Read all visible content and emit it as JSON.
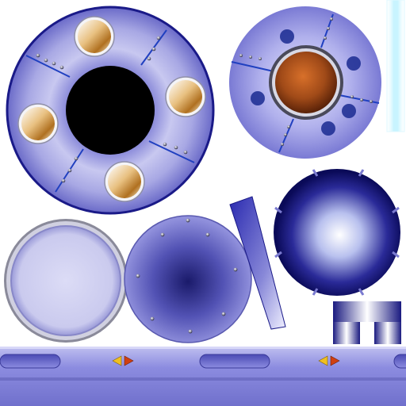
{
  "atlas": {
    "background": "#ffffff",
    "palette": {
      "lavender_light": "#d6d6f3",
      "lavender_mid": "#9a9ae0",
      "indigo": "#5a5ab8",
      "navy": "#1a1a78",
      "seam_blue": "#2040c0",
      "rim_silver": "#b8b8c8",
      "glow_cyan": "#c8f4ff",
      "copper_core": "#a8501e",
      "gold_porthole": "#c08a30",
      "arrow_yellow": "#f0c020",
      "arrow_red": "#d04010"
    },
    "sprites": [
      {
        "id": "porthole-ring",
        "icon": "ring-with-portholes-icon",
        "portholes": 4,
        "seams": 4
      },
      {
        "id": "hatch-disc",
        "icon": "hatch-disc-icon",
        "core": "copper",
        "bolts": 5,
        "seams": 4
      },
      {
        "id": "lens-disc",
        "icon": "plain-lens-icon"
      },
      {
        "id": "riveted-plate",
        "icon": "riveted-plate-icon",
        "rivets": 8
      },
      {
        "id": "tapered-beam",
        "icon": "tapered-beam-icon"
      },
      {
        "id": "energy-orb",
        "icon": "glowing-orb-icon",
        "notches": 4
      },
      {
        "id": "pillar-bracket",
        "icon": "bracket-icon"
      },
      {
        "id": "light-strip",
        "icon": "glow-strip-icon"
      },
      {
        "id": "rail-bar",
        "icon": "rail-bar-icon",
        "slots": 3,
        "arrow_pairs": 2
      }
    ]
  }
}
